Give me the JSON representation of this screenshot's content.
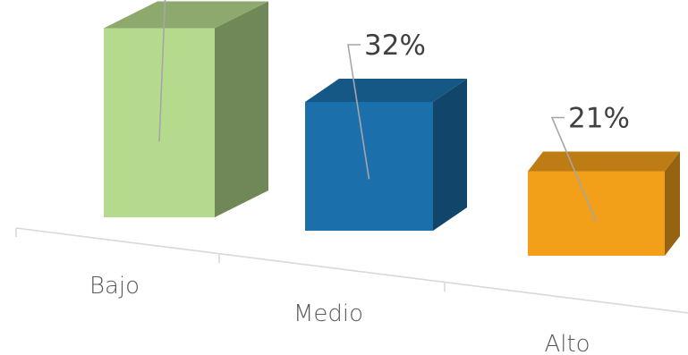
{
  "chart_data": {
    "type": "bar",
    "style": "3d",
    "categories": [
      "Bajo",
      "Medio",
      "Alto"
    ],
    "values": [
      47,
      32,
      21
    ],
    "value_suffix": "%",
    "colors": [
      "#b5d98d",
      "#1b6faa",
      "#f29f1a"
    ],
    "title": "",
    "xlabel": "",
    "ylabel": "",
    "legend": "none",
    "grid": false,
    "ylim": [
      0,
      50
    ]
  }
}
